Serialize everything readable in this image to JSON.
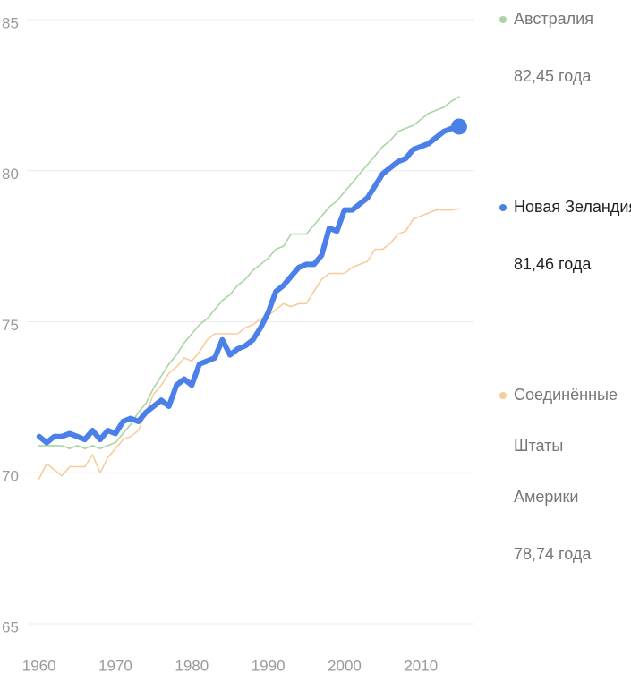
{
  "chart_data": {
    "type": "line",
    "x": [
      1960,
      1961,
      1962,
      1963,
      1964,
      1965,
      1966,
      1967,
      1968,
      1969,
      1970,
      1971,
      1972,
      1973,
      1974,
      1975,
      1976,
      1977,
      1978,
      1979,
      1980,
      1981,
      1982,
      1983,
      1984,
      1985,
      1986,
      1987,
      1988,
      1989,
      1990,
      1991,
      1992,
      1993,
      1994,
      1995,
      1996,
      1997,
      1998,
      1999,
      2000,
      2001,
      2002,
      2003,
      2004,
      2005,
      2006,
      2007,
      2008,
      2009,
      2010,
      2011,
      2012,
      2013,
      2014,
      2015
    ],
    "series": [
      {
        "name": "Австралия",
        "color": "#a8d5a2",
        "legend_value_label": "82,45 года",
        "values": [
          70.9,
          70.9,
          70.9,
          70.9,
          70.8,
          70.9,
          70.8,
          70.9,
          70.8,
          70.9,
          71.0,
          71.3,
          71.6,
          72.0,
          72.3,
          72.8,
          73.2,
          73.6,
          73.9,
          74.3,
          74.6,
          74.9,
          75.1,
          75.4,
          75.7,
          75.9,
          76.2,
          76.4,
          76.7,
          76.9,
          77.1,
          77.4,
          77.5,
          77.9,
          77.9,
          77.9,
          78.2,
          78.5,
          78.8,
          79.0,
          79.3,
          79.6,
          79.9,
          80.2,
          80.5,
          80.8,
          81.0,
          81.3,
          81.4,
          81.5,
          81.7,
          81.9,
          82.0,
          82.1,
          82.3,
          82.45
        ]
      },
      {
        "name": "Новая Зеландия",
        "color": "#4a80e8",
        "legend_value_label": "81,46 года",
        "highlight": true,
        "values": [
          71.2,
          71.0,
          71.2,
          71.2,
          71.3,
          71.2,
          71.1,
          71.4,
          71.1,
          71.4,
          71.3,
          71.7,
          71.8,
          71.7,
          72.0,
          72.2,
          72.4,
          72.2,
          72.9,
          73.1,
          72.9,
          73.6,
          73.7,
          73.8,
          74.4,
          73.9,
          74.1,
          74.2,
          74.4,
          74.8,
          75.3,
          76.0,
          76.2,
          76.5,
          76.8,
          76.9,
          76.9,
          77.2,
          78.1,
          78.0,
          78.7,
          78.7,
          78.9,
          79.1,
          79.5,
          79.9,
          80.1,
          80.3,
          80.4,
          80.7,
          80.8,
          80.9,
          81.1,
          81.3,
          81.4,
          81.46
        ]
      },
      {
        "name": "Соединённые Штаты Америки",
        "color": "#f5cd9c",
        "legend_value_label": "78,74 года",
        "values": [
          69.8,
          70.3,
          70.1,
          69.9,
          70.2,
          70.2,
          70.2,
          70.6,
          70.0,
          70.5,
          70.8,
          71.1,
          71.2,
          71.4,
          72.0,
          72.6,
          72.9,
          73.3,
          73.5,
          73.8,
          73.7,
          74.0,
          74.4,
          74.6,
          74.6,
          74.6,
          74.6,
          74.8,
          74.9,
          75.1,
          75.2,
          75.4,
          75.6,
          75.5,
          75.6,
          75.6,
          76.0,
          76.4,
          76.6,
          76.6,
          76.6,
          76.8,
          76.9,
          77.0,
          77.4,
          77.4,
          77.6,
          77.9,
          78.0,
          78.4,
          78.5,
          78.6,
          78.7,
          78.7,
          78.7,
          78.74
        ]
      }
    ],
    "xlim": [
      1958.4,
      2017
    ],
    "xticks": [
      1960,
      1970,
      1980,
      1990,
      2000,
      2010
    ],
    "ylim": [
      65,
      85
    ],
    "yticks": [
      65,
      70,
      75,
      80,
      85
    ],
    "grid": true
  }
}
